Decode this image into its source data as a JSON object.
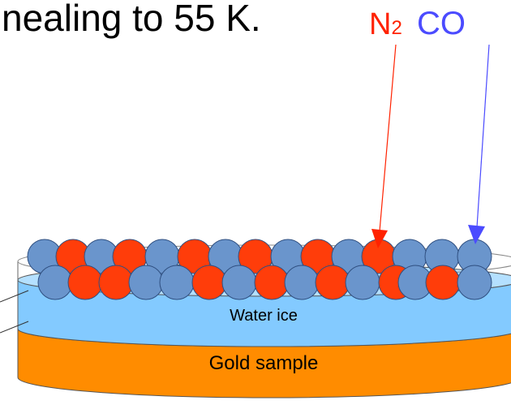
{
  "title": "nealing to 55 K.",
  "labels": {
    "n2": {
      "text": "N",
      "sub": "2"
    },
    "co": "CO"
  },
  "layers": {
    "water": "Water ice",
    "gold": "Gold sample"
  }
}
